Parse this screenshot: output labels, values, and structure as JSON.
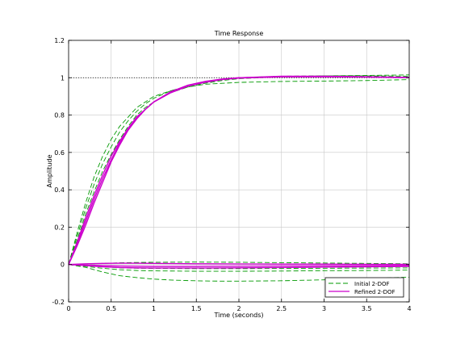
{
  "chart_data": {
    "type": "line",
    "title": "Time Response",
    "xlabel": "Time (seconds)",
    "ylabel": "Amplitude",
    "xlim": [
      0,
      4
    ],
    "ylim": [
      -0.2,
      1.2
    ],
    "xticks": [
      0,
      0.5,
      1,
      1.5,
      2,
      2.5,
      3,
      3.5,
      4
    ],
    "yticks": [
      -0.2,
      0,
      0.2,
      0.4,
      0.6,
      0.8,
      1,
      1.2
    ],
    "xtick_labels": [
      "0",
      "0.5",
      "1",
      "1.5",
      "2",
      "2.5",
      "3",
      "3.5",
      "4"
    ],
    "ytick_labels": [
      "-0.2",
      "0",
      "0.2",
      "0.4",
      "0.6",
      "0.8",
      "1",
      "1.2"
    ],
    "grid": true,
    "reference_line": {
      "y": 1,
      "style": "dotted",
      "color": "#000000"
    },
    "legend": {
      "placement": "bottom-right",
      "entries": [
        {
          "label": "Initial 2-DOF",
          "color": "#009900",
          "style": "dashed"
        },
        {
          "label": "Refined 2-DOF",
          "color": "#cc00cc",
          "style": "solid"
        }
      ]
    },
    "series": [
      {
        "group": "Initial 2-DOF",
        "color": "#009900",
        "dash": "6,3",
        "x": [
          0,
          0.1,
          0.2,
          0.3,
          0.4,
          0.5,
          0.6,
          0.7,
          0.8,
          0.9,
          1.0,
          1.2,
          1.4,
          1.6,
          1.8,
          2.0,
          2.5,
          3.0,
          3.5,
          4.0
        ],
        "y": [
          0,
          0.17,
          0.33,
          0.47,
          0.58,
          0.67,
          0.74,
          0.79,
          0.84,
          0.87,
          0.9,
          0.93,
          0.95,
          0.965,
          0.97,
          0.975,
          0.98,
          0.982,
          0.985,
          0.99
        ]
      },
      {
        "group": "Initial 2-DOF",
        "color": "#009900",
        "dash": "6,3",
        "x": [
          0,
          0.1,
          0.2,
          0.3,
          0.4,
          0.5,
          0.6,
          0.7,
          0.8,
          0.9,
          1.0,
          1.2,
          1.4,
          1.6,
          1.8,
          2.0,
          2.5,
          3.0,
          3.5,
          4.0
        ],
        "y": [
          0,
          0.15,
          0.3,
          0.43,
          0.54,
          0.63,
          0.71,
          0.77,
          0.82,
          0.86,
          0.89,
          0.93,
          0.955,
          0.975,
          0.99,
          1.0,
          1.008,
          1.01,
          1.01,
          1.008
        ]
      },
      {
        "group": "Initial 2-DOF",
        "color": "#009900",
        "dash": "6,3",
        "x": [
          0,
          0.1,
          0.2,
          0.3,
          0.4,
          0.5,
          0.6,
          0.7,
          0.8,
          0.9,
          1.0,
          1.2,
          1.4,
          1.6,
          1.8,
          2.0,
          2.5,
          3.0,
          3.5,
          4.0
        ],
        "y": [
          0,
          0.13,
          0.27,
          0.39,
          0.5,
          0.59,
          0.67,
          0.74,
          0.8,
          0.84,
          0.87,
          0.92,
          0.95,
          0.97,
          0.985,
          0.995,
          1.005,
          1.01,
          1.012,
          1.015
        ]
      },
      {
        "group": "Initial 2-DOF",
        "color": "#009900",
        "dash": "6,3",
        "x": [
          0,
          0.2,
          0.4,
          0.6,
          0.8,
          1.0,
          1.2,
          1.4,
          1.6,
          1.8,
          2.0,
          2.5,
          3.0,
          3.5,
          4.0
        ],
        "y": [
          0,
          -0.015,
          -0.04,
          -0.06,
          -0.07,
          -0.078,
          -0.083,
          -0.086,
          -0.088,
          -0.089,
          -0.089,
          -0.087,
          -0.082,
          -0.075,
          -0.068
        ]
      },
      {
        "group": "Initial 2-DOF",
        "color": "#009900",
        "dash": "6,3",
        "x": [
          0,
          0.2,
          0.4,
          0.6,
          0.8,
          1.0,
          1.5,
          2.0,
          2.5,
          3.0,
          3.5,
          4.0
        ],
        "y": [
          0,
          -0.01,
          -0.02,
          -0.028,
          -0.032,
          -0.034,
          -0.036,
          -0.036,
          -0.035,
          -0.033,
          -0.032,
          -0.03
        ]
      },
      {
        "group": "Initial 2-DOF",
        "color": "#009900",
        "dash": "6,3",
        "x": [
          0,
          0.2,
          0.4,
          0.6,
          0.8,
          1.0,
          1.5,
          2.0,
          2.5,
          3.0,
          3.5,
          4.0
        ],
        "y": [
          0,
          0.003,
          0.006,
          0.009,
          0.011,
          0.012,
          0.013,
          0.012,
          0.01,
          0.008,
          0.006,
          0.004
        ]
      },
      {
        "group": "Initial 2-DOF",
        "color": "#009900",
        "dash": "6,3",
        "x": [
          0,
          0.2,
          0.4,
          0.6,
          0.8,
          1.0,
          1.5,
          2.0,
          2.5,
          3.0,
          3.5,
          4.0
        ],
        "y": [
          0,
          -0.005,
          -0.012,
          -0.018,
          -0.02,
          -0.021,
          -0.022,
          -0.022,
          -0.021,
          -0.02,
          -0.019,
          -0.018
        ]
      },
      {
        "group": "Refined 2-DOF",
        "color": "#cc00cc",
        "dash": "",
        "x": [
          0,
          0.1,
          0.2,
          0.3,
          0.4,
          0.5,
          0.6,
          0.7,
          0.8,
          0.9,
          1.0,
          1.2,
          1.4,
          1.6,
          1.8,
          2.0,
          2.5,
          3.0,
          3.5,
          4.0
        ],
        "y": [
          0,
          0.12,
          0.25,
          0.37,
          0.48,
          0.58,
          0.66,
          0.73,
          0.79,
          0.83,
          0.87,
          0.92,
          0.955,
          0.975,
          0.99,
          1.0,
          1.005,
          1.005,
          1.003,
          1.0
        ]
      },
      {
        "group": "Refined 2-DOF",
        "color": "#cc00cc",
        "dash": "",
        "x": [
          0,
          0.1,
          0.2,
          0.3,
          0.4,
          0.5,
          0.6,
          0.7,
          0.8,
          0.9,
          1.0,
          1.2,
          1.4,
          1.6,
          1.8,
          2.0,
          2.5,
          3.0,
          3.5,
          4.0
        ],
        "y": [
          0,
          0.11,
          0.23,
          0.35,
          0.46,
          0.56,
          0.65,
          0.72,
          0.78,
          0.83,
          0.87,
          0.925,
          0.96,
          0.98,
          0.993,
          1.0,
          1.008,
          1.008,
          1.005,
          1.002
        ]
      },
      {
        "group": "Refined 2-DOF",
        "color": "#cc00cc",
        "dash": "",
        "x": [
          0,
          0.1,
          0.2,
          0.3,
          0.4,
          0.5,
          0.6,
          0.7,
          0.8,
          0.9,
          1.0,
          1.2,
          1.4,
          1.6,
          1.8,
          2.0,
          2.5,
          3.0,
          3.5,
          4.0
        ],
        "y": [
          0,
          0.1,
          0.21,
          0.33,
          0.44,
          0.55,
          0.64,
          0.72,
          0.78,
          0.83,
          0.87,
          0.92,
          0.955,
          0.978,
          0.99,
          0.998,
          1.005,
          1.006,
          1.004,
          1.001
        ]
      },
      {
        "group": "Refined 2-DOF",
        "color": "#cc00cc",
        "dash": "",
        "x": [
          0,
          0.2,
          0.4,
          0.6,
          0.8,
          1.0,
          1.5,
          2.0,
          2.5,
          3.0,
          3.5,
          4.0
        ],
        "y": [
          0,
          0.004,
          0.006,
          0.007,
          0.007,
          0.006,
          0.004,
          0.003,
          0.002,
          0.002,
          0.001,
          0.001
        ]
      },
      {
        "group": "Refined 2-DOF",
        "color": "#cc00cc",
        "dash": "",
        "x": [
          0,
          0.2,
          0.4,
          0.6,
          0.8,
          1.0,
          1.5,
          2.0,
          2.5,
          3.0,
          3.5,
          4.0
        ],
        "y": [
          0,
          -0.003,
          -0.006,
          -0.008,
          -0.009,
          -0.01,
          -0.01,
          -0.009,
          -0.008,
          -0.007,
          -0.006,
          -0.005
        ]
      },
      {
        "group": "Refined 2-DOF",
        "color": "#cc00cc",
        "dash": "",
        "x": [
          0,
          0.2,
          0.4,
          0.6,
          0.8,
          1.0,
          1.5,
          2.0,
          2.5,
          3.0,
          3.5,
          4.0
        ],
        "y": [
          0,
          -0.006,
          -0.012,
          -0.016,
          -0.018,
          -0.019,
          -0.019,
          -0.018,
          -0.016,
          -0.014,
          -0.012,
          -0.01
        ]
      }
    ]
  }
}
